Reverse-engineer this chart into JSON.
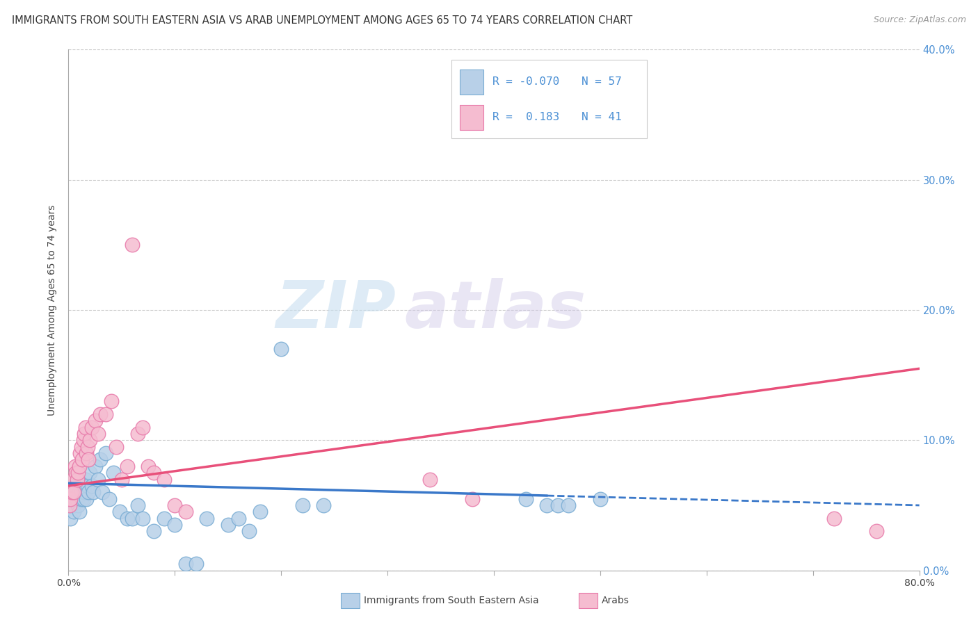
{
  "title": "IMMIGRANTS FROM SOUTH EASTERN ASIA VS ARAB UNEMPLOYMENT AMONG AGES 65 TO 74 YEARS CORRELATION CHART",
  "source": "Source: ZipAtlas.com",
  "ylabel": "Unemployment Among Ages 65 to 74 years",
  "xlim": [
    0,
    0.8
  ],
  "ylim": [
    0,
    0.4
  ],
  "xticks": [
    0.0,
    0.1,
    0.2,
    0.3,
    0.4,
    0.5,
    0.6,
    0.7,
    0.8
  ],
  "yticks": [
    0.0,
    0.1,
    0.2,
    0.3,
    0.4
  ],
  "right_yticklabels": [
    "0.0%",
    "10.0%",
    "20.0%",
    "30.0%",
    "40.0%"
  ],
  "blue_color": "#b8d0e8",
  "blue_edge_color": "#7aadd4",
  "pink_color": "#f5bcd0",
  "pink_edge_color": "#e87aaa",
  "blue_line_color": "#3a78c9",
  "pink_line_color": "#e8507a",
  "legend_R_blue": "-0.070",
  "legend_N_blue": "57",
  "legend_R_pink": "0.183",
  "legend_N_pink": "41",
  "legend_label_blue": "Immigrants from South Eastern Asia",
  "legend_label_pink": "Arabs",
  "watermark_zip": "ZIP",
  "watermark_atlas": "atlas",
  "blue_scatter_x": [
    0.002,
    0.003,
    0.004,
    0.005,
    0.005,
    0.006,
    0.006,
    0.007,
    0.008,
    0.008,
    0.009,
    0.01,
    0.01,
    0.011,
    0.012,
    0.012,
    0.013,
    0.014,
    0.015,
    0.015,
    0.016,
    0.017,
    0.018,
    0.019,
    0.02,
    0.022,
    0.023,
    0.025,
    0.028,
    0.03,
    0.032,
    0.035,
    0.038,
    0.042,
    0.048,
    0.055,
    0.06,
    0.065,
    0.07,
    0.08,
    0.09,
    0.1,
    0.11,
    0.12,
    0.13,
    0.15,
    0.16,
    0.17,
    0.18,
    0.2,
    0.22,
    0.24,
    0.43,
    0.45,
    0.46,
    0.47,
    0.5
  ],
  "blue_scatter_y": [
    0.04,
    0.05,
    0.055,
    0.06,
    0.045,
    0.065,
    0.055,
    0.06,
    0.055,
    0.07,
    0.05,
    0.06,
    0.045,
    0.065,
    0.055,
    0.06,
    0.065,
    0.055,
    0.065,
    0.06,
    0.07,
    0.055,
    0.065,
    0.06,
    0.075,
    0.065,
    0.06,
    0.08,
    0.07,
    0.085,
    0.06,
    0.09,
    0.055,
    0.075,
    0.045,
    0.04,
    0.04,
    0.05,
    0.04,
    0.03,
    0.04,
    0.035,
    0.005,
    0.005,
    0.04,
    0.035,
    0.04,
    0.03,
    0.045,
    0.17,
    0.05,
    0.05,
    0.055,
    0.05,
    0.05,
    0.05,
    0.055
  ],
  "pink_scatter_x": [
    0.001,
    0.002,
    0.003,
    0.004,
    0.005,
    0.006,
    0.007,
    0.008,
    0.009,
    0.01,
    0.011,
    0.012,
    0.013,
    0.014,
    0.015,
    0.016,
    0.017,
    0.018,
    0.019,
    0.02,
    0.022,
    0.025,
    0.028,
    0.03,
    0.035,
    0.04,
    0.045,
    0.05,
    0.055,
    0.06,
    0.065,
    0.07,
    0.075,
    0.08,
    0.09,
    0.1,
    0.11,
    0.34,
    0.38,
    0.72,
    0.76
  ],
  "pink_scatter_y": [
    0.05,
    0.055,
    0.06,
    0.07,
    0.06,
    0.08,
    0.075,
    0.07,
    0.075,
    0.08,
    0.09,
    0.095,
    0.085,
    0.1,
    0.105,
    0.11,
    0.09,
    0.095,
    0.085,
    0.1,
    0.11,
    0.115,
    0.105,
    0.12,
    0.12,
    0.13,
    0.095,
    0.07,
    0.08,
    0.25,
    0.105,
    0.11,
    0.08,
    0.075,
    0.07,
    0.05,
    0.045,
    0.07,
    0.055,
    0.04,
    0.03
  ],
  "blue_line_x_start": 0.0,
  "blue_line_x_solid_end": 0.45,
  "blue_line_x_end": 0.8,
  "pink_line_x_start": 0.0,
  "pink_line_x_end": 0.8,
  "blue_line_y_start": 0.067,
  "blue_line_y_end": 0.05,
  "pink_line_y_start": 0.065,
  "pink_line_y_end": 0.155
}
